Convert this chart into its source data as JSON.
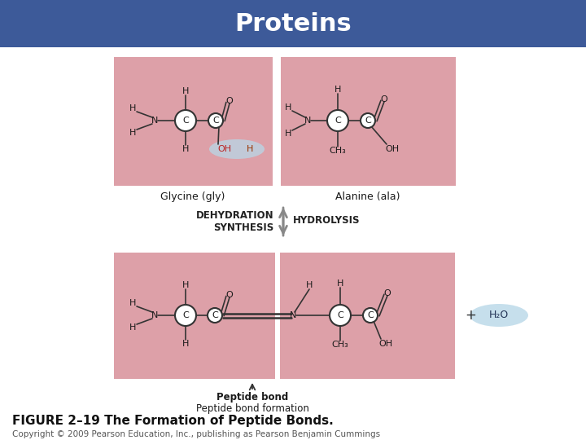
{
  "title": "Proteins",
  "title_bg_color": "#3d5a99",
  "title_text_color": "#ffffff",
  "title_fontsize": 22,
  "bg_color": "#ffffff",
  "pink_bg": "#dda0a8",
  "figure_caption": "FIGURE 2–19 The Formation of Peptide Bonds.",
  "caption_fontsize": 11,
  "copyright_text": "Copyright © 2009 Pearson Education, Inc., publishing as Pearson Benjamin Cummings",
  "copyright_fontsize": 7.5,
  "glycine_label": "Glycine (gly)",
  "alanine_label": "Alanine (ala)",
  "dehydration_label": "DEHYDRATION\nSYNTHESIS",
  "hydrolysis_label": "HYDROLYSIS",
  "peptide_bond_label": "Peptide bond",
  "peptide_bond_formation_label": "Peptide bond formation",
  "water_label": "H₂O",
  "oh_highlight": "#b8d8e8",
  "water_highlight": "#b8d8e8"
}
